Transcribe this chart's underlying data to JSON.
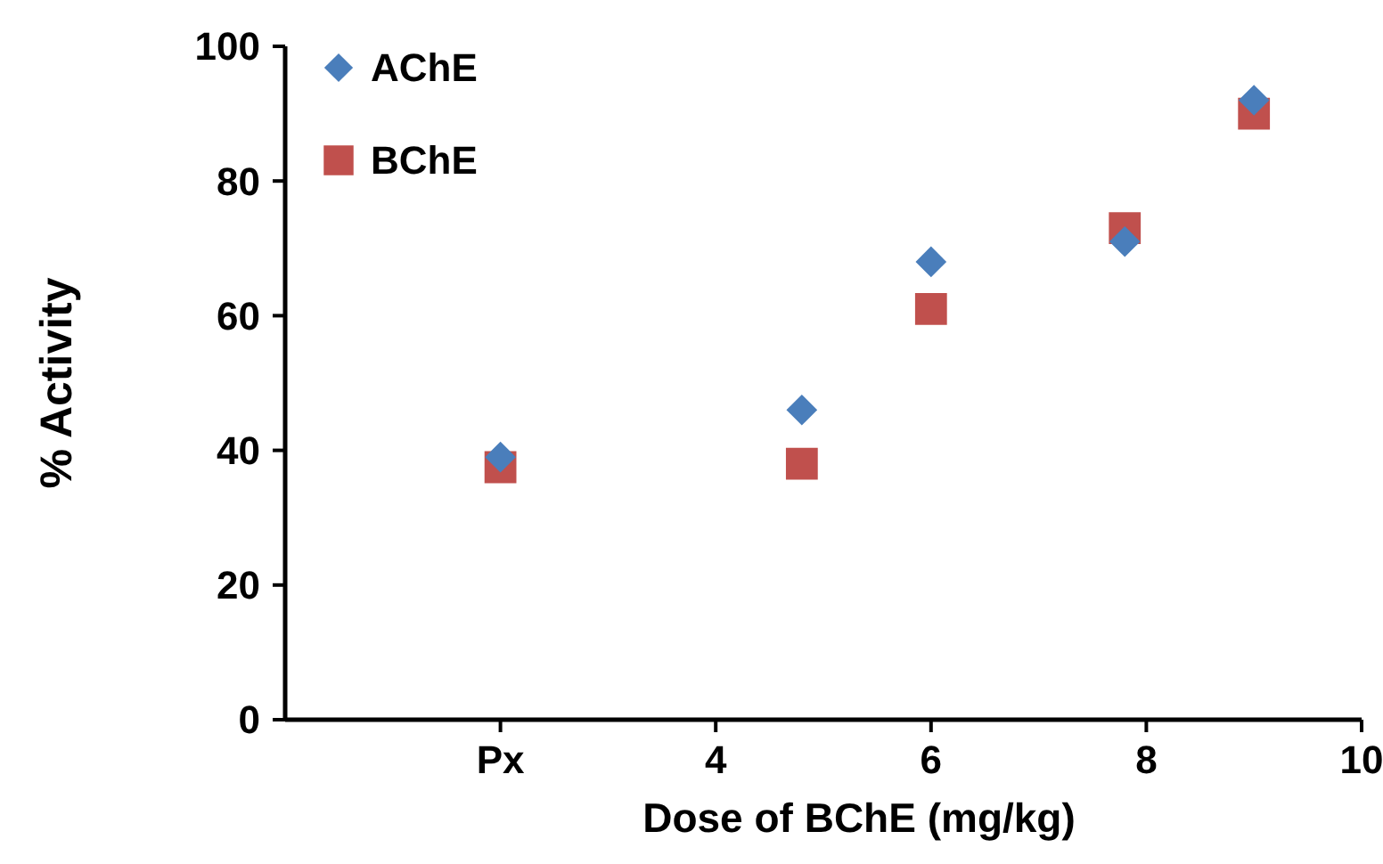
{
  "chart_data": {
    "type": "scatter",
    "xlabel": "Dose of BChE (mg/kg)",
    "ylabel": "% Activity",
    "xlim": [
      0,
      10
    ],
    "xticks": [
      {
        "value": 2,
        "label": "Px"
      },
      4,
      6,
      8,
      10
    ],
    "ylim": [
      0,
      100
    ],
    "yticks": [
      0,
      20,
      40,
      60,
      80,
      100
    ],
    "grid": false,
    "legend": "top left",
    "series": [
      {
        "name": "AChE",
        "color": "#4a7ebb",
        "marker": "diamond",
        "x": [
          2,
          4.8,
          6,
          7.8,
          9
        ],
        "values": [
          39,
          46,
          68,
          71,
          92
        ]
      },
      {
        "name": "BChE",
        "color": "#c0504d",
        "marker": "square",
        "x": [
          2,
          4.8,
          6,
          7.8,
          9
        ],
        "values": [
          37.5,
          38,
          61,
          73,
          90
        ]
      }
    ]
  }
}
